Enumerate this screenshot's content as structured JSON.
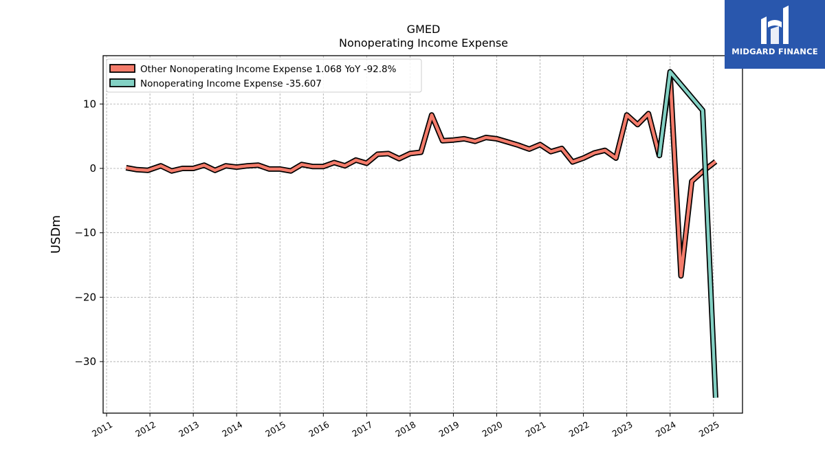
{
  "brand": {
    "name": "MIDGARD FINANCE",
    "bg_color": "#2957ad"
  },
  "chart_data": {
    "type": "line",
    "title": "GMED",
    "subtitle": "Nonoperating Income Expense",
    "xlabel": "",
    "ylabel": "USDm",
    "xlim": [
      2010.92,
      2025.67
    ],
    "ylim": [
      -38.0,
      17.5
    ],
    "x_ticks": [
      2011,
      2012,
      2013,
      2014,
      2015,
      2016,
      2017,
      2018,
      2019,
      2020,
      2021,
      2022,
      2023,
      2024,
      2025
    ],
    "x_tick_labels": [
      "2011",
      "2012",
      "2013",
      "2014",
      "2015",
      "2016",
      "2017",
      "2018",
      "2019",
      "2020",
      "2021",
      "2022",
      "2023",
      "2024",
      "2025"
    ],
    "y_ticks": [
      10,
      0,
      -10,
      -20,
      -30
    ],
    "y_tick_labels": [
      "10",
      "0",
      "−10",
      "−20",
      "−30"
    ],
    "grid": true,
    "legend_position": "top-left",
    "series": [
      {
        "name": "Other Nonoperating Income Expense",
        "legend_label": "Other Nonoperating Income Expense  1.068 YoY -92.8%",
        "color": "#f47c6b",
        "x": [
          2011.45,
          2011.7,
          2011.95,
          2012.25,
          2012.5,
          2012.75,
          2013.0,
          2013.25,
          2013.5,
          2013.75,
          2014.0,
          2014.25,
          2014.5,
          2014.75,
          2015.0,
          2015.25,
          2015.5,
          2015.75,
          2016.0,
          2016.25,
          2016.5,
          2016.75,
          2017.0,
          2017.25,
          2017.5,
          2017.75,
          2018.0,
          2018.25,
          2018.5,
          2018.75,
          2019.0,
          2019.25,
          2019.5,
          2019.75,
          2020.0,
          2020.25,
          2020.5,
          2020.75,
          2021.0,
          2021.25,
          2021.5,
          2021.75,
          2022.0,
          2022.25,
          2022.5,
          2022.75,
          2023.0,
          2023.25,
          2023.5,
          2023.75,
          2024.0,
          2024.25,
          2024.5,
          2024.75,
          2025.05
        ],
        "values": [
          0.1,
          -0.2,
          -0.3,
          0.4,
          -0.4,
          0.0,
          0.0,
          0.5,
          -0.3,
          0.4,
          0.2,
          0.4,
          0.5,
          -0.1,
          -0.1,
          -0.4,
          0.6,
          0.3,
          0.3,
          0.9,
          0.4,
          1.3,
          0.8,
          2.2,
          2.3,
          1.5,
          2.3,
          2.5,
          8.3,
          4.3,
          4.4,
          4.6,
          4.2,
          4.8,
          4.6,
          4.1,
          3.6,
          3.0,
          3.7,
          2.6,
          3.1,
          1.0,
          1.6,
          2.4,
          2.8,
          1.6,
          8.3,
          6.8,
          8.5,
          2.0,
          14.5,
          -16.7,
          -2.0,
          -0.5,
          1.068
        ]
      },
      {
        "name": "Nonoperating Income Expense",
        "legend_label": "Nonoperating Income Expense  -35.607",
        "color": "#83d1c4",
        "x": [
          2023.75,
          2024.0,
          2024.75,
          2025.05
        ],
        "values": [
          1.8,
          15.0,
          9.0,
          -35.607
        ]
      }
    ]
  }
}
